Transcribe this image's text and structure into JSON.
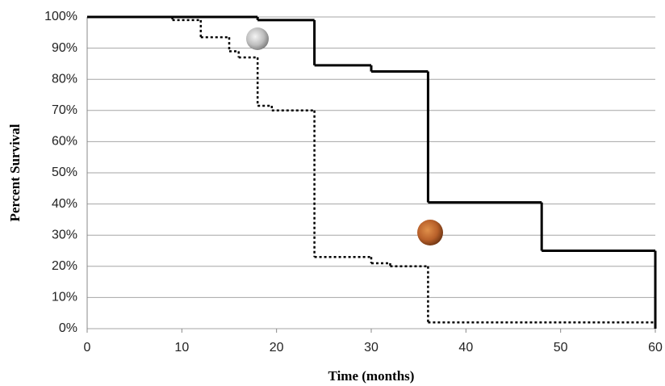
{
  "chart_data": {
    "type": "step",
    "x_label": "Time (months)",
    "y_label": "Percent Survival",
    "xlim": [
      0,
      60
    ],
    "xticks": [
      0,
      10,
      20,
      30,
      40,
      50,
      60
    ],
    "ylim": [
      0,
      100
    ],
    "yticks": [
      {
        "value": 0,
        "label": "0%"
      },
      {
        "value": 10,
        "label": "10%"
      },
      {
        "value": 20,
        "label": "20%"
      },
      {
        "value": 30,
        "label": "30%"
      },
      {
        "value": 40,
        "label": "40%"
      },
      {
        "value": 50,
        "label": "50%"
      },
      {
        "value": 60,
        "label": "60%"
      },
      {
        "value": 70,
        "label": "70%"
      },
      {
        "value": 80,
        "label": "80%"
      },
      {
        "value": 90,
        "label": "90%"
      },
      {
        "value": 100,
        "label": "100%"
      }
    ],
    "grid": true,
    "series": [
      {
        "color": "#000000",
        "dash": "solid",
        "x": [
          0,
          18,
          24,
          30,
          36,
          48,
          60
        ],
        "values": [
          100,
          99,
          84.5,
          82.5,
          40.5,
          25,
          0
        ]
      },
      {
        "color": "#000000",
        "dash": "dotted",
        "x": [
          0,
          9,
          12,
          15,
          16,
          18,
          19.5,
          24,
          30,
          32,
          36,
          60
        ],
        "values": [
          100,
          99,
          93.5,
          89,
          87,
          71.5,
          70,
          23,
          21,
          20,
          2,
          2
        ]
      }
    ]
  }
}
